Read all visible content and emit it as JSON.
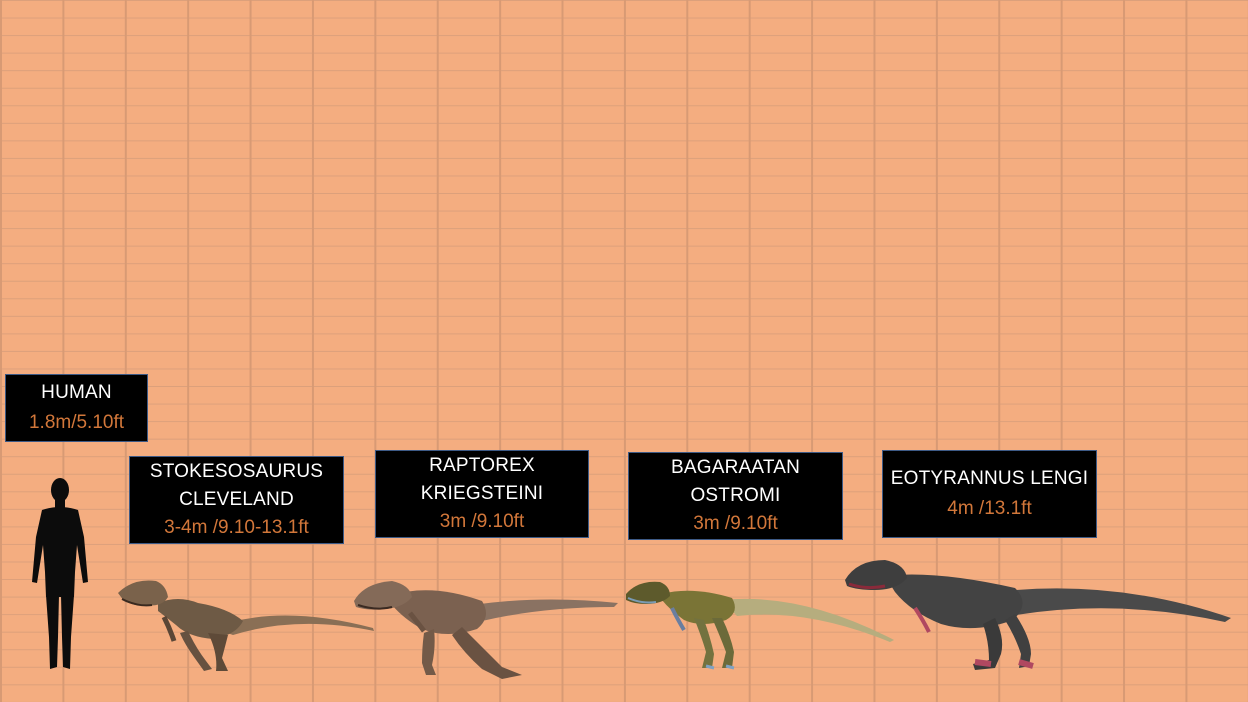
{
  "specimens": [
    {
      "name_lines": [
        "HUMAN"
      ],
      "size": "1.8m/5.10ft"
    },
    {
      "name_lines": [
        "STOKESOSAURUS",
        "CLEVELAND"
      ],
      "size": "3-4m /9.10-13.1ft"
    },
    {
      "name_lines": [
        "RAPTOREX",
        "KRIEGSTEINI"
      ],
      "size": "3m /9.10ft"
    },
    {
      "name_lines": [
        "BAGARAATAN",
        "OSTROMI"
      ],
      "size": "3m /9.10ft"
    },
    {
      "name_lines": [
        "EOTYRANNUS LENGI"
      ],
      "size": "4m /13.1ft"
    }
  ],
  "colors": {
    "background": "#f4ad80",
    "grid": "#d89a74",
    "label_box": "#000000",
    "label_border": "#3d5a86",
    "name_text": "#ffffff",
    "size_text": "#d2773a"
  },
  "icons": [
    "human-silhouette",
    "stokesosaurus-figure",
    "raptorex-figure",
    "bagaraatan-figure",
    "eotyrannus-figure"
  ]
}
